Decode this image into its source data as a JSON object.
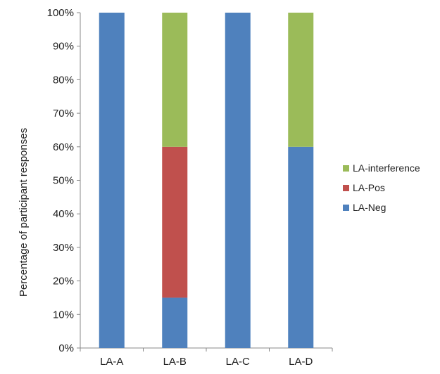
{
  "chart_data": {
    "type": "bar",
    "stacked": true,
    "categories": [
      "LA-A",
      "LA-B",
      "LA-C",
      "LA-D"
    ],
    "series": [
      {
        "name": "LA-Neg",
        "color": "#4f81bd",
        "values": [
          100,
          15,
          100,
          60
        ]
      },
      {
        "name": "LA-Pos",
        "color": "#c0504d",
        "values": [
          0,
          45,
          0,
          0
        ]
      },
      {
        "name": "LA-interference",
        "color": "#9bbb59",
        "values": [
          0,
          40,
          0,
          40
        ]
      }
    ],
    "legend_order": [
      "LA-interference",
      "LA-Pos",
      "LA-Neg"
    ],
    "ylabel": "Percentage of participant responses",
    "xlabel": "",
    "ylim": [
      0,
      100
    ],
    "yticks": [
      "0%",
      "10%",
      "20%",
      "30%",
      "40%",
      "50%",
      "60%",
      "70%",
      "80%",
      "90%",
      "100%"
    ],
    "grid": false,
    "legend_position": "right"
  }
}
